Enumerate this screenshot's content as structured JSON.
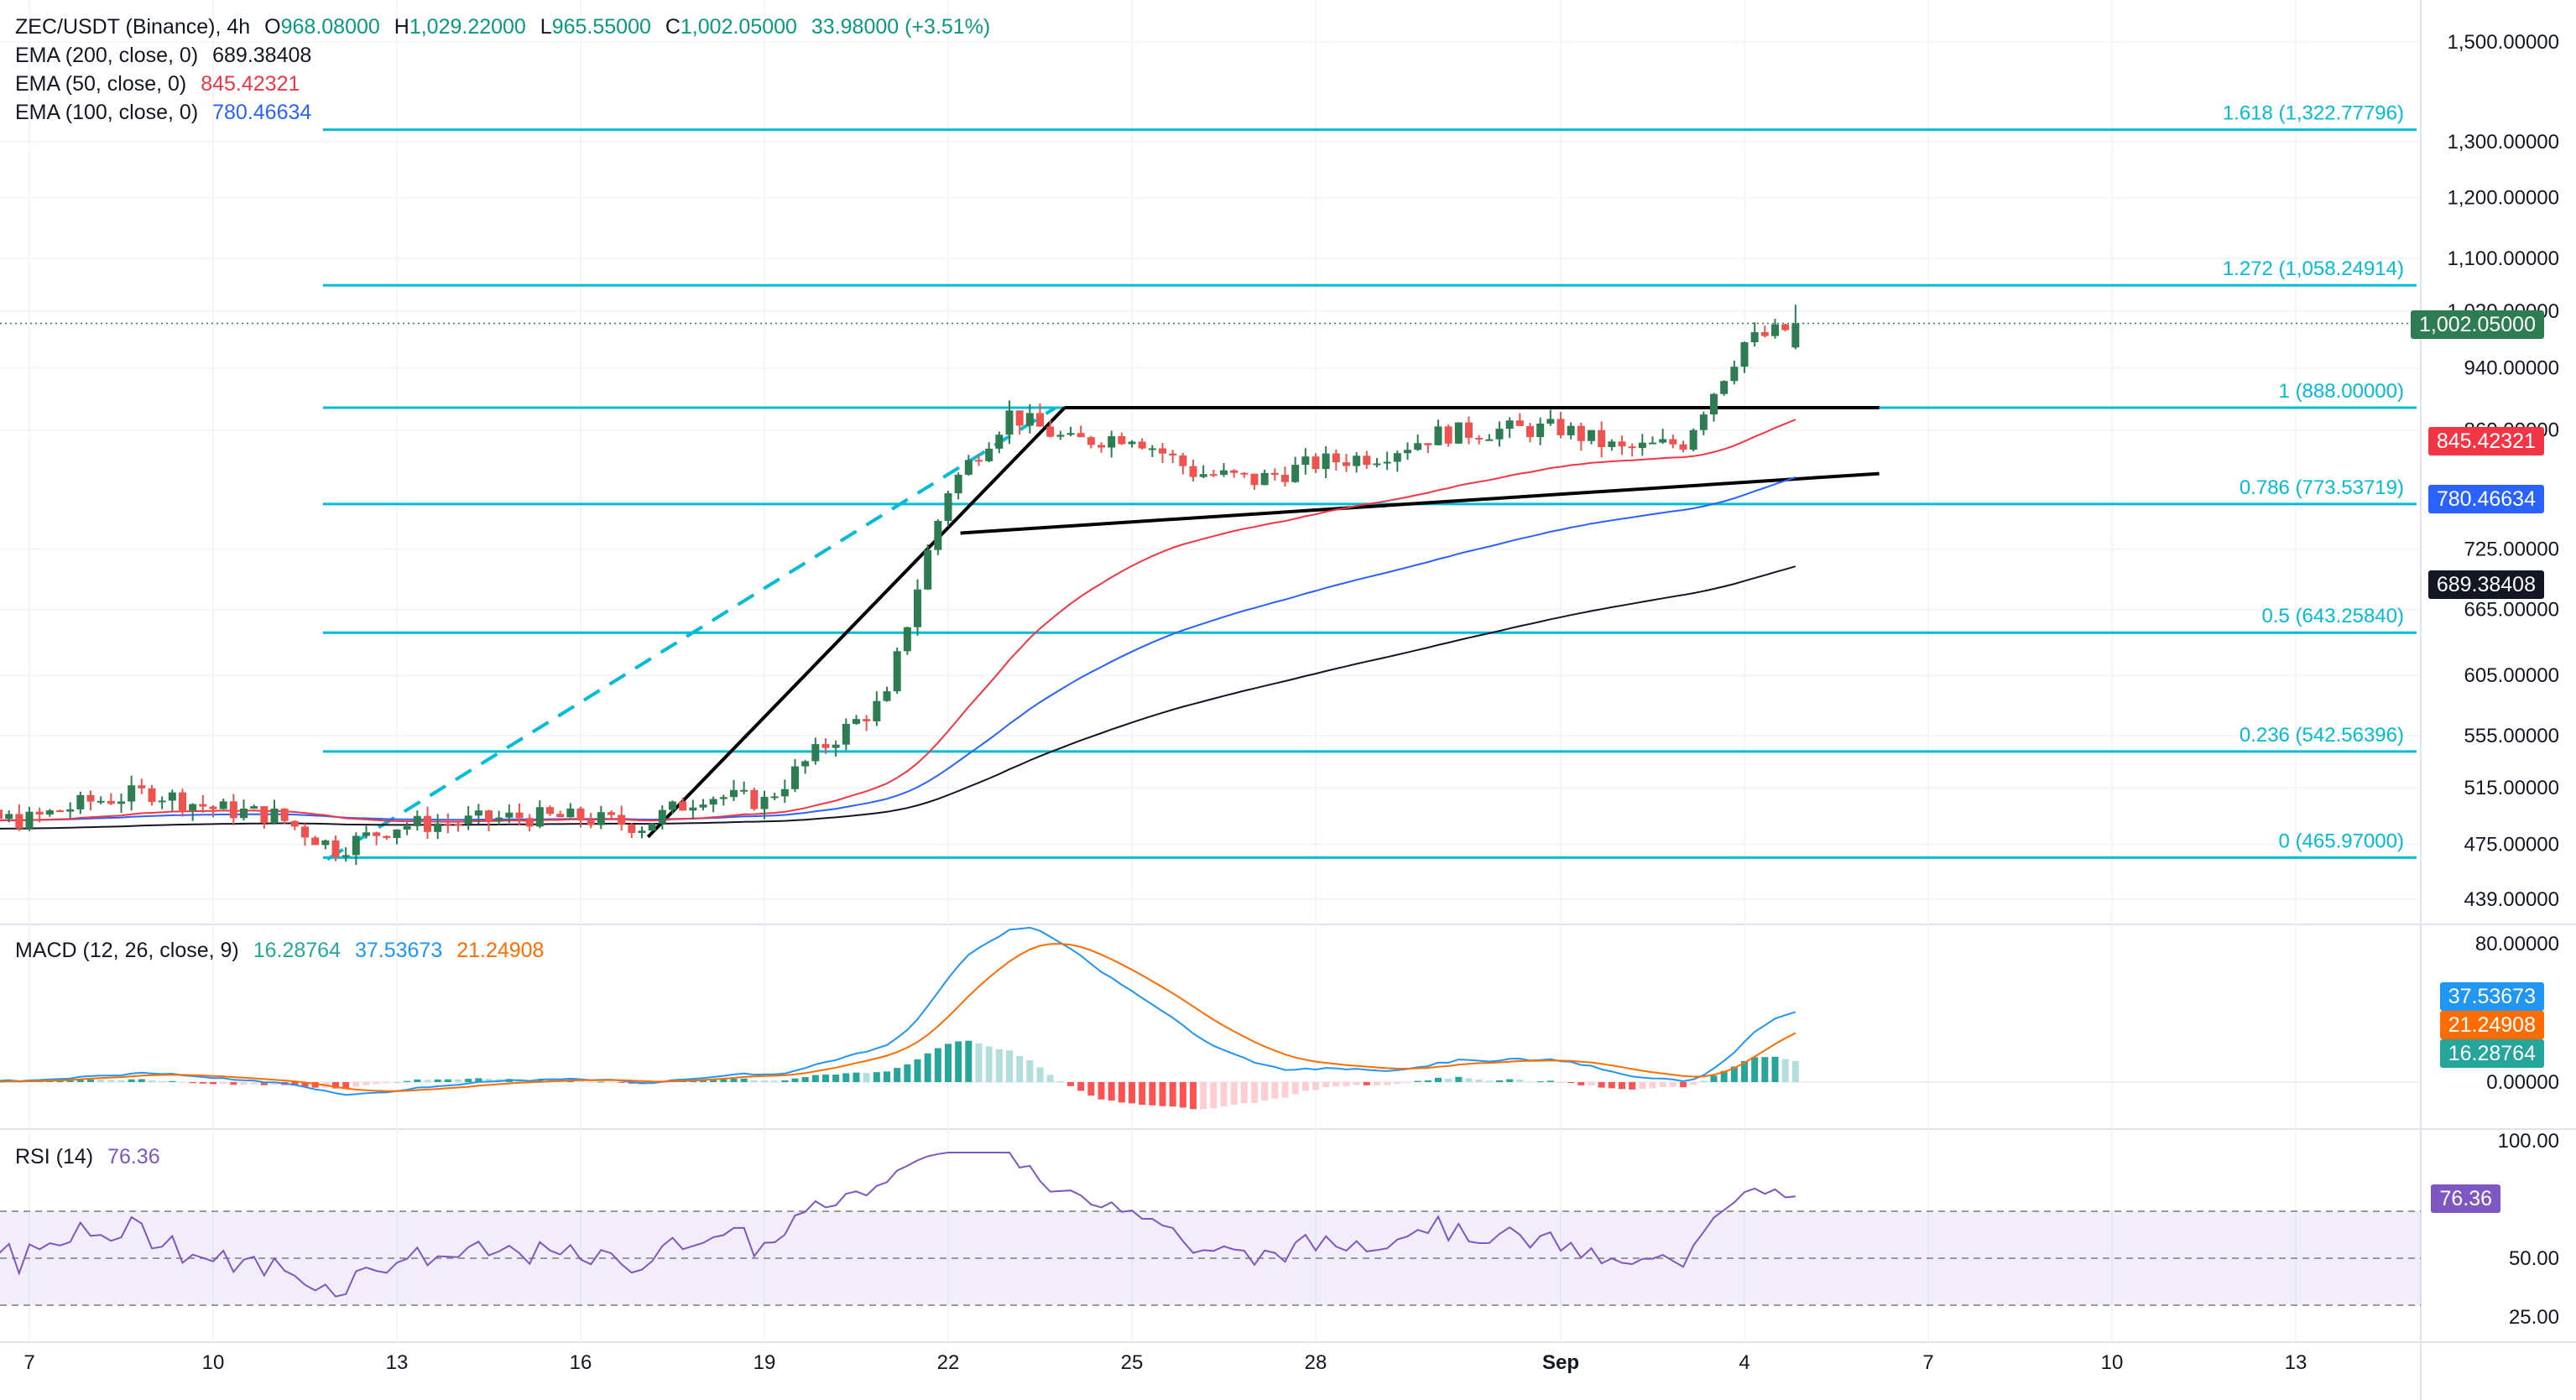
{
  "header": {
    "symbol": "ZEC/USDT (Binance), 4h",
    "open_label": "O",
    "open": "968.08000",
    "high_label": "H",
    "high": "1,029.22000",
    "low_label": "L",
    "low": "965.55000",
    "close_label": "C",
    "close": "1,002.05000",
    "change": "33.98000 (+3.51%)"
  },
  "indicators": {
    "ema200": {
      "label": "EMA (200, close, 0)",
      "value": "689.38408",
      "color": "#131722"
    },
    "ema50": {
      "label": "EMA (50, close, 0)",
      "value": "845.42321",
      "color": "#f23645"
    },
    "ema100": {
      "label": "EMA (100, close, 0)",
      "value": "780.46634",
      "color": "#2962ff"
    },
    "macd": {
      "label": "MACD (12, 26, close, 9)",
      "hist": "16.28764",
      "macd": "37.53673",
      "signal": "21.24908"
    },
    "rsi": {
      "label": "RSI (14)",
      "value": "76.36"
    }
  },
  "price_axis": [
    "1,500.00000",
    "1,300.00000",
    "1,200.00000",
    "1,100.00000",
    "1,020.00000",
    "940.00000",
    "860.00000",
    "725.00000",
    "665.00000",
    "605.00000",
    "555.00000",
    "515.00000",
    "475.00000",
    "439.00000"
  ],
  "macd_axis": [
    "80.00000",
    "0.00000"
  ],
  "rsi_axis": [
    "100.00",
    "50.00",
    "25.00"
  ],
  "badges": {
    "last": "1,002.05000",
    "ema50": "845.42321",
    "ema100": "780.46634",
    "ema200": "689.38408",
    "macd": "37.53673",
    "signal": "21.24908",
    "hist": "16.28764",
    "rsi": "76.36"
  },
  "fib_labels": [
    "1.618 (1,322.77796)",
    "1.272 (1,058.24914)",
    "1 (888.00000)",
    "0.786 (773.53719)",
    "0.5 (643.25840)",
    "0.236 (542.56396)",
    "0 (465.97000)"
  ],
  "time_axis": [
    "7",
    "10",
    "13",
    "16",
    "19",
    "22",
    "25",
    "28",
    "Sep",
    "4",
    "7",
    "10",
    "13"
  ],
  "colors": {
    "up": "#26a69a",
    "up_strong": "#2e7d52",
    "down": "#ef5350",
    "fib": "#00bcd4",
    "ema50": "#f23645",
    "ema100": "#2962ff",
    "ema200": "#131722",
    "macd": "#2196f3",
    "signal": "#ff6d00",
    "rsi": "#7e57c2"
  },
  "chart_data": {
    "type": "candlestick",
    "symbol": "ZEC/USDT",
    "exchange": "Binance",
    "timeframe": "4h",
    "y_scale": "log",
    "ylim": [
      439,
      1500
    ],
    "x_ticks": [
      "7",
      "10",
      "13",
      "16",
      "19",
      "22",
      "25",
      "28",
      "Sep",
      "4",
      "7",
      "10",
      "13"
    ],
    "ohlc_last": {
      "open": 968.08,
      "high": 1029.22,
      "low": 965.55,
      "close": 1002.05,
      "change": 33.98,
      "change_pct": 3.51
    },
    "close_series": [
      {
        "day": 7,
        "close": 492
      },
      {
        "day": 8,
        "close": 505
      },
      {
        "day": 9,
        "close": 512
      },
      {
        "day": 10,
        "close": 500
      },
      {
        "day": 11,
        "close": 495
      },
      {
        "day": 12,
        "close": 472
      },
      {
        "day": 13,
        "close": 488
      },
      {
        "day": 14,
        "close": 490
      },
      {
        "day": 15,
        "close": 494
      },
      {
        "day": 16,
        "close": 493
      },
      {
        "day": 17,
        "close": 488
      },
      {
        "day": 18,
        "close": 510
      },
      {
        "day": 19,
        "close": 505
      },
      {
        "day": 20,
        "close": 548
      },
      {
        "day": 21,
        "close": 585
      },
      {
        "day": 22,
        "close": 790
      },
      {
        "day": 23,
        "close": 880
      },
      {
        "day": 24,
        "close": 845
      },
      {
        "day": 25,
        "close": 855
      },
      {
        "day": 26,
        "close": 810
      },
      {
        "day": 27,
        "close": 800
      },
      {
        "day": 28,
        "close": 820
      },
      {
        "day": 29,
        "close": 830
      },
      {
        "day": 30,
        "close": 855
      },
      {
        "day": 31,
        "close": 860
      },
      {
        "day": 32,
        "close": 862
      },
      {
        "day": 33,
        "close": 835
      },
      {
        "day": 34,
        "close": 845
      },
      {
        "day": 35,
        "close": 975
      },
      {
        "day": 36,
        "close": 1002.05
      }
    ],
    "ema": [
      {
        "name": "EMA (200, close, 0)",
        "last": 689.38408
      },
      {
        "name": "EMA (50, close, 0)",
        "last": 845.42321
      },
      {
        "name": "EMA (100, close, 0)",
        "last": 780.46634
      }
    ],
    "fibonacci": [
      {
        "level": "1.618",
        "price": 1322.77796
      },
      {
        "level": "1.272",
        "price": 1058.24914
      },
      {
        "level": "1",
        "price": 888.0
      },
      {
        "level": "0.786",
        "price": 773.53719
      },
      {
        "level": "0.5",
        "price": 643.2584
      },
      {
        "level": "0.236",
        "price": 542.56396
      },
      {
        "level": "0",
        "price": 465.97
      }
    ],
    "macd": {
      "params": "12, 26, close, 9",
      "histogram": 16.28764,
      "macd": 37.53673,
      "signal": 21.24908,
      "ylim": [
        0,
        80
      ]
    },
    "rsi": {
      "period": 14,
      "value": 76.36,
      "levels": [
        70,
        50,
        30
      ],
      "ylim": [
        25,
        100
      ]
    }
  }
}
